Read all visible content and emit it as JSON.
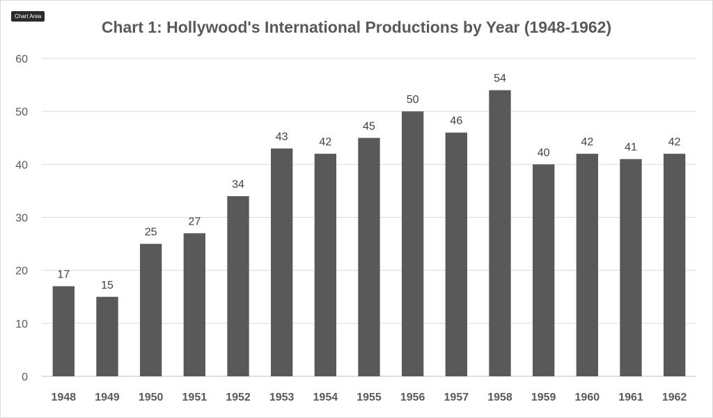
{
  "tooltip": {
    "text": "Chart Area"
  },
  "chart_data": {
    "type": "bar",
    "title": "Chart 1: Hollywood's International Productions by Year (1948-1962)",
    "xlabel": "",
    "ylabel": "",
    "categories": [
      "1948",
      "1949",
      "1950",
      "1951",
      "1952",
      "1953",
      "1954",
      "1955",
      "1956",
      "1957",
      "1958",
      "1959",
      "1960",
      "1961",
      "1962"
    ],
    "values": [
      17,
      15,
      25,
      27,
      34,
      43,
      42,
      45,
      50,
      46,
      54,
      40,
      42,
      41,
      42
    ],
    "ylim": [
      0,
      60
    ],
    "yticks": [
      0,
      10,
      20,
      30,
      40,
      50,
      60
    ],
    "data_labels": true,
    "grid": true,
    "legend": "none",
    "colors": {
      "bar": "#595959",
      "grid": "#d9d9d9",
      "axis": "#bfbfbf",
      "text": "#595959"
    }
  }
}
